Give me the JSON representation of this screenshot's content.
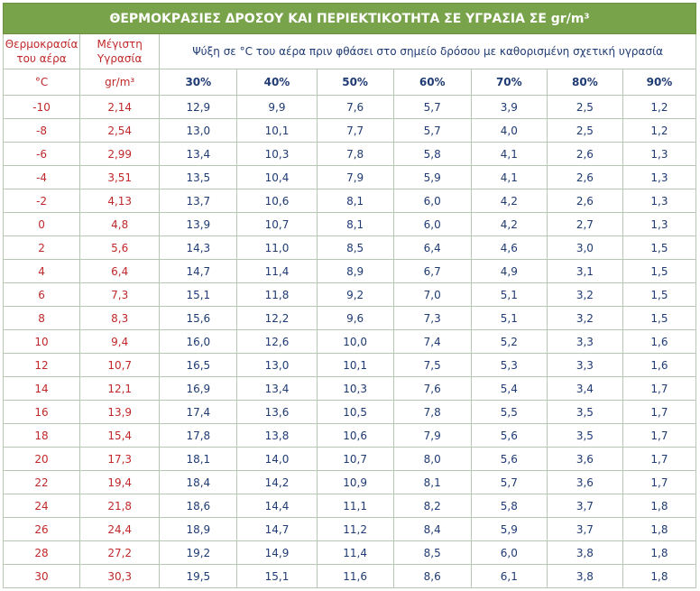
{
  "title": "ΘΕΡΜΟΚΡΑΣΙΕΣ ΔΡΟΣΟΥ ΚΑΙ ΠΕΡΙΕΚΤΙΚΟΤΗΤΑ ΣΕ ΥΓΡΑΣΙΑ ΣΕ gr/m³",
  "header": {
    "col1_line1": "Θερμοκρασία",
    "col1_line2": "του αέρα",
    "col2_line1": "Μέγιστη",
    "col2_line2": "Υγρασία",
    "span_label": "Ψύξη σε °C του αέρα πριν φθάσει στο σημείο δρόσου με καθορισμένη σχετική υγρασία",
    "unit_temp": "°C",
    "unit_hum": "gr/m³",
    "percentages": [
      "30%",
      "40%",
      "50%",
      "60%",
      "70%",
      "80%",
      "90%"
    ]
  },
  "rows": [
    {
      "t": "-10",
      "max": "2,14",
      "v": [
        "12,9",
        "9,9",
        "7,6",
        "5,7",
        "3,9",
        "2,5",
        "1,2"
      ]
    },
    {
      "t": "-8",
      "max": "2,54",
      "v": [
        "13,0",
        "10,1",
        "7,7",
        "5,7",
        "4,0",
        "2,5",
        "1,2"
      ]
    },
    {
      "t": "-6",
      "max": "2,99",
      "v": [
        "13,4",
        "10,3",
        "7,8",
        "5,8",
        "4,1",
        "2,6",
        "1,3"
      ]
    },
    {
      "t": "-4",
      "max": "3,51",
      "v": [
        "13,5",
        "10,4",
        "7,9",
        "5,9",
        "4,1",
        "2,6",
        "1,3"
      ]
    },
    {
      "t": "-2",
      "max": "4,13",
      "v": [
        "13,7",
        "10,6",
        "8,1",
        "6,0",
        "4,2",
        "2,6",
        "1,3"
      ]
    },
    {
      "t": "0",
      "max": "4,8",
      "v": [
        "13,9",
        "10,7",
        "8,1",
        "6,0",
        "4,2",
        "2,7",
        "1,3"
      ]
    },
    {
      "t": "2",
      "max": "5,6",
      "v": [
        "14,3",
        "11,0",
        "8,5",
        "6,4",
        "4,6",
        "3,0",
        "1,5"
      ]
    },
    {
      "t": "4",
      "max": "6,4",
      "v": [
        "14,7",
        "11,4",
        "8,9",
        "6,7",
        "4,9",
        "3,1",
        "1,5"
      ]
    },
    {
      "t": "6",
      "max": "7,3",
      "v": [
        "15,1",
        "11,8",
        "9,2",
        "7,0",
        "5,1",
        "3,2",
        "1,5"
      ]
    },
    {
      "t": "8",
      "max": "8,3",
      "v": [
        "15,6",
        "12,2",
        "9,6",
        "7,3",
        "5,1",
        "3,2",
        "1,5"
      ]
    },
    {
      "t": "10",
      "max": "9,4",
      "v": [
        "16,0",
        "12,6",
        "10,0",
        "7,4",
        "5,2",
        "3,3",
        "1,6"
      ]
    },
    {
      "t": "12",
      "max": "10,7",
      "v": [
        "16,5",
        "13,0",
        "10,1",
        "7,5",
        "5,3",
        "3,3",
        "1,6"
      ]
    },
    {
      "t": "14",
      "max": "12,1",
      "v": [
        "16,9",
        "13,4",
        "10,3",
        "7,6",
        "5,4",
        "3,4",
        "1,7"
      ]
    },
    {
      "t": "16",
      "max": "13,9",
      "v": [
        "17,4",
        "13,6",
        "10,5",
        "7,8",
        "5,5",
        "3,5",
        "1,7"
      ]
    },
    {
      "t": "18",
      "max": "15,4",
      "v": [
        "17,8",
        "13,8",
        "10,6",
        "7,9",
        "5,6",
        "3,5",
        "1,7"
      ]
    },
    {
      "t": "20",
      "max": "17,3",
      "v": [
        "18,1",
        "14,0",
        "10,7",
        "8,0",
        "5,6",
        "3,6",
        "1,7"
      ]
    },
    {
      "t": "22",
      "max": "19,4",
      "v": [
        "18,4",
        "14,2",
        "10,9",
        "8,1",
        "5,7",
        "3,6",
        "1,7"
      ]
    },
    {
      "t": "24",
      "max": "21,8",
      "v": [
        "18,6",
        "14,4",
        "11,1",
        "8,2",
        "5,8",
        "3,7",
        "1,8"
      ]
    },
    {
      "t": "26",
      "max": "24,4",
      "v": [
        "18,9",
        "14,7",
        "11,2",
        "8,4",
        "5,9",
        "3,7",
        "1,8"
      ]
    },
    {
      "t": "28",
      "max": "27,2",
      "v": [
        "19,2",
        "14,9",
        "11,4",
        "8,5",
        "6,0",
        "3,8",
        "1,8"
      ]
    },
    {
      "t": "30",
      "max": "30,3",
      "v": [
        "19,5",
        "15,1",
        "11,6",
        "8,6",
        "6,1",
        "3,8",
        "1,8"
      ]
    }
  ]
}
